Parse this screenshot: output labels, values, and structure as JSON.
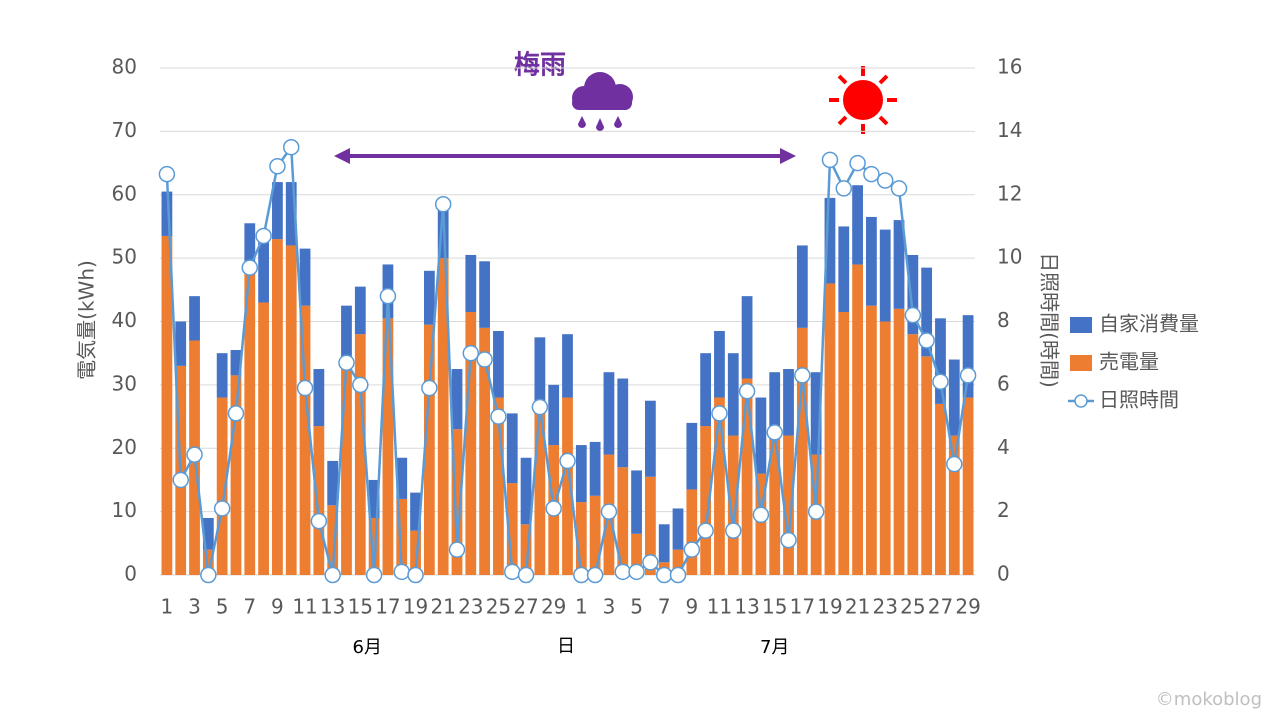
{
  "chart_data": {
    "type": "bar",
    "stacked": true,
    "categories": [
      "1",
      null,
      "3",
      null,
      "5",
      null,
      "7",
      null,
      "9",
      null,
      "11",
      null,
      "13",
      null,
      "15",
      null,
      "17",
      null,
      "19",
      null,
      "21",
      null,
      "23",
      null,
      "25",
      null,
      "27",
      null,
      "29",
      null,
      "1",
      null,
      "3",
      null,
      "5",
      null,
      "7",
      null,
      "9",
      null,
      "11",
      null,
      "13",
      null,
      "15",
      null,
      "17",
      null,
      "19",
      null,
      "21",
      null,
      "23",
      null,
      "25",
      null,
      "27",
      null,
      "29"
    ],
    "x_groups": [
      {
        "label": "6月",
        "count": 30
      },
      {
        "label": "7月",
        "count": 29
      }
    ],
    "xlabel": "日",
    "ylabel": "電気量(kWh)",
    "y2label": "日照時間(時間)",
    "annotation": "梅雨",
    "watermark": "©mokoblog",
    "series": [
      {
        "name": "自家消費量",
        "color": "#4472c4",
        "values": [
          7,
          7,
          7,
          5,
          7,
          4,
          8,
          10,
          9,
          10,
          9,
          9,
          7,
          8.5,
          7.5,
          6,
          8.5,
          6.5,
          6,
          8.5,
          8,
          9.5,
          9,
          10.5,
          10.5,
          11,
          10.5,
          10.5,
          9.5,
          10,
          9,
          8.5,
          13,
          14,
          10,
          12,
          6,
          6.5,
          10.5,
          11.5,
          10.5,
          13,
          13,
          12,
          10.5,
          10.5,
          13,
          13,
          13.5,
          13.5,
          12.5,
          14,
          14.5,
          14,
          12.5,
          14,
          13.5,
          12,
          13
        ]
      },
      {
        "name": "売電量",
        "color": "#ed7d31",
        "values": [
          53.5,
          33,
          37,
          4,
          28,
          31.5,
          47.5,
          43,
          53,
          52,
          42.5,
          23.5,
          11,
          34,
          38,
          9,
          40.5,
          12,
          7,
          39.5,
          50,
          23,
          41.5,
          39,
          28,
          14.5,
          8,
          27,
          20.5,
          28,
          11.5,
          12.5,
          19,
          17,
          6.5,
          15.5,
          2,
          4,
          13.5,
          23.5,
          28,
          22,
          31,
          16,
          21.5,
          22,
          39,
          19,
          46,
          41.5,
          49,
          42.5,
          40,
          42,
          38,
          34.5,
          27,
          22,
          28
        ]
      },
      {
        "name": "日照時間",
        "type": "line",
        "axis": "y2",
        "color": "#5b9bd5",
        "values": [
          12.65,
          3.0,
          3.8,
          0,
          2.1,
          5.1,
          9.7,
          10.7,
          12.9,
          13.5,
          5.9,
          1.7,
          0,
          6.7,
          6.0,
          0,
          8.8,
          0.1,
          0,
          5.9,
          11.7,
          0.8,
          7.0,
          6.8,
          5.0,
          0.1,
          0,
          5.3,
          2.1,
          3.6,
          0,
          0,
          2.0,
          0.1,
          0.1,
          0.4,
          0,
          0,
          0.8,
          1.4,
          5.1,
          1.4,
          5.8,
          1.9,
          4.5,
          1.1,
          6.3,
          2.0,
          13.1,
          12.2,
          13.0,
          12.65,
          12.45,
          12.2,
          8.2,
          7.4,
          6.1,
          3.5,
          6.3
        ]
      }
    ],
    "ylim": [
      0,
      80
    ],
    "yticks": [
      0,
      10,
      20,
      30,
      40,
      50,
      60,
      70,
      80
    ],
    "y2lim": [
      0,
      16
    ],
    "y2ticks": [
      0,
      2,
      4,
      6,
      8,
      10,
      12,
      14,
      16
    ],
    "grid": true,
    "legend": "right"
  }
}
